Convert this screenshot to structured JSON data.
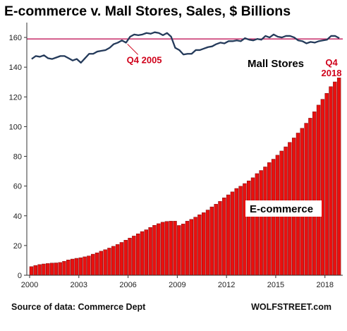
{
  "colors": {
    "bar": "#e8100f",
    "bar_edge": "#7a0a0a",
    "line": "#243a5a",
    "ref_line": "#c2185b",
    "annotation": "#d0021b"
  },
  "chart_data": {
    "type": "bar",
    "title": "E-commerce v. Mall Stores, Sales, $ Billions",
    "xlabel": "",
    "ylabel": "",
    "ylim": [
      0,
      170
    ],
    "yticks": [
      0,
      20,
      40,
      60,
      80,
      100,
      120,
      140,
      160
    ],
    "xticks": [
      "2000",
      "2003",
      "2006",
      "2009",
      "2012",
      "2015",
      "2018"
    ],
    "grid": false,
    "legend": "none",
    "categories": [
      "2000 Q1",
      "2000 Q2",
      "2000 Q3",
      "2000 Q4",
      "2001 Q1",
      "2001 Q2",
      "2001 Q3",
      "2001 Q4",
      "2002 Q1",
      "2002 Q2",
      "2002 Q3",
      "2002 Q4",
      "2003 Q1",
      "2003 Q2",
      "2003 Q3",
      "2003 Q4",
      "2004 Q1",
      "2004 Q2",
      "2004 Q3",
      "2004 Q4",
      "2005 Q1",
      "2005 Q2",
      "2005 Q3",
      "2005 Q4",
      "2006 Q1",
      "2006 Q2",
      "2006 Q3",
      "2006 Q4",
      "2007 Q1",
      "2007 Q2",
      "2007 Q3",
      "2007 Q4",
      "2008 Q1",
      "2008 Q2",
      "2008 Q3",
      "2008 Q4",
      "2009 Q1",
      "2009 Q2",
      "2009 Q3",
      "2009 Q4",
      "2010 Q1",
      "2010 Q2",
      "2010 Q3",
      "2010 Q4",
      "2011 Q1",
      "2011 Q2",
      "2011 Q3",
      "2011 Q4",
      "2012 Q1",
      "2012 Q2",
      "2012 Q3",
      "2012 Q4",
      "2013 Q1",
      "2013 Q2",
      "2013 Q3",
      "2013 Q4",
      "2014 Q1",
      "2014 Q2",
      "2014 Q3",
      "2014 Q4",
      "2015 Q1",
      "2015 Q2",
      "2015 Q3",
      "2015 Q4",
      "2016 Q1",
      "2016 Q2",
      "2016 Q3",
      "2016 Q4",
      "2017 Q1",
      "2017 Q2",
      "2017 Q3",
      "2017 Q4",
      "2018 Q1",
      "2018 Q2",
      "2018 Q3",
      "2018 Q4"
    ],
    "series": [
      {
        "kind": "bar",
        "values": [
          5.8,
          6.6,
          7.2,
          7.6,
          7.9,
          8.2,
          8.3,
          8.6,
          9.4,
          10.3,
          10.9,
          11.4,
          11.8,
          12.4,
          13.0,
          14.2,
          15.1,
          16.2,
          17.2,
          18.3,
          19.5,
          20.7,
          22.1,
          23.6,
          25.0,
          26.4,
          27.9,
          29.4,
          30.6,
          32.2,
          33.6,
          34.7,
          35.7,
          36.2,
          36.4,
          36.4,
          33.5,
          34.5,
          36.4,
          37.6,
          39.1,
          40.7,
          42.1,
          43.9,
          46.0,
          47.8,
          49.7,
          52.1,
          54.1,
          56.1,
          58.4,
          59.9,
          61.7,
          63.5,
          65.6,
          68.4,
          70.5,
          72.9,
          75.8,
          78.1,
          80.8,
          83.6,
          86.4,
          89.4,
          92.4,
          95.7,
          98.9,
          102.3,
          105.7,
          110.0,
          114.5,
          118.4,
          122.4,
          126.9,
          130.1,
          132.8
        ]
      },
      {
        "kind": "line",
        "name": "Mall Stores",
        "values": [
          145.5,
          147.5,
          147.0,
          148.0,
          146.0,
          145.5,
          146.5,
          147.5,
          147.5,
          146.0,
          144.5,
          145.5,
          143.0,
          146.0,
          149.0,
          149.0,
          150.5,
          151.0,
          151.5,
          153.0,
          155.5,
          156.5,
          158.0,
          156.5,
          160.5,
          162.0,
          161.5,
          162.0,
          163.0,
          162.5,
          163.5,
          163.0,
          161.5,
          163.0,
          160.5,
          153.0,
          151.5,
          148.5,
          149.0,
          149.0,
          151.5,
          151.5,
          152.5,
          153.5,
          154.0,
          155.5,
          156.5,
          156.0,
          157.5,
          157.5,
          158.0,
          157.5,
          159.5,
          158.5,
          158.0,
          159.0,
          158.5,
          161.0,
          160.0,
          162.0,
          160.5,
          160.0,
          161.0,
          161.0,
          160.0,
          158.0,
          157.5,
          156.0,
          157.0,
          156.5,
          157.5,
          158.0,
          158.5,
          161.0,
          161.0,
          159.5
        ]
      }
    ],
    "reference_line": 159,
    "annotations": {
      "bar_label": "E-commerce",
      "line_label": "Mall Stores",
      "peak_label": "Q4 2005",
      "latest_q": "Q4",
      "latest_year": "2018"
    }
  },
  "footer": {
    "source": "Source of data: Commerce Dept",
    "credit": "WOLFSTREET.com"
  }
}
